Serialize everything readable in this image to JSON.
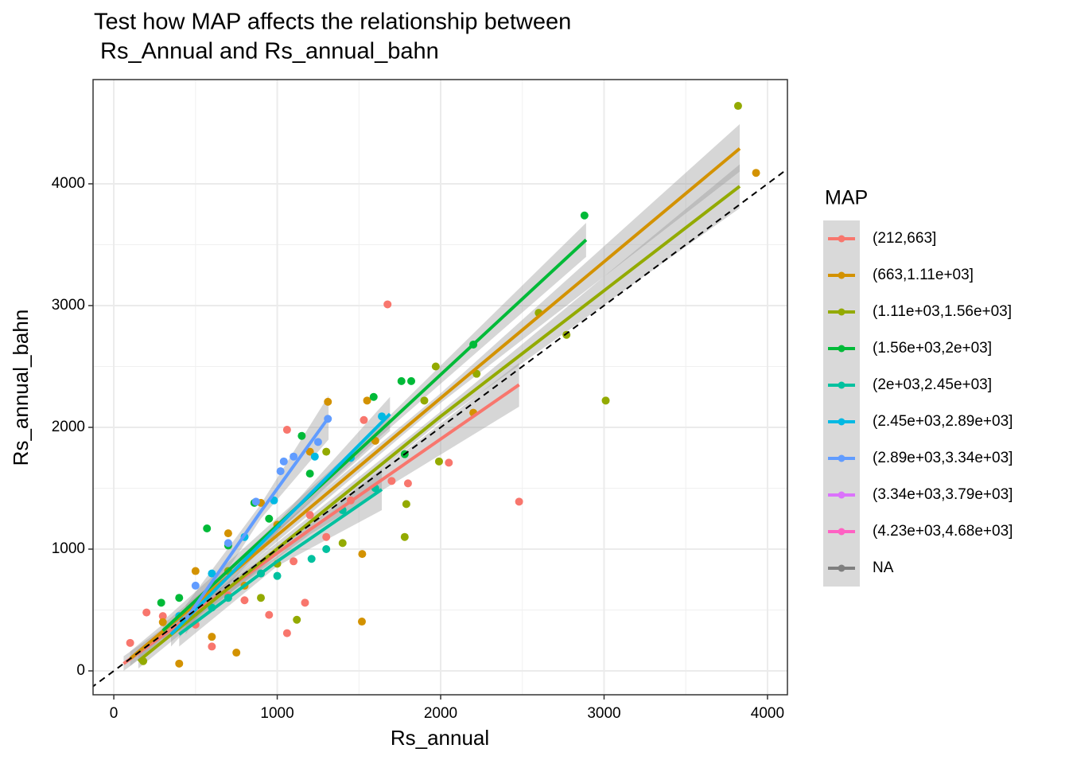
{
  "chart_data": {
    "type": "scatter",
    "title": [
      "Test how MAP affects the relationship between",
      " Rs_Annual and Rs_annual_bahn"
    ],
    "x_label": "Rs_annual",
    "y_label": "Rs_annual_bahn",
    "legend_title": "MAP",
    "xlim": [
      -127,
      4122
    ],
    "ylim": [
      -196,
      4856
    ],
    "xticks": [
      0,
      1000,
      2000,
      3000,
      4000
    ],
    "yticks": [
      0,
      1000,
      2000,
      3000,
      4000
    ],
    "grid": true,
    "minor_grid": true,
    "identity_line": true,
    "legend": "right",
    "series": [
      {
        "name": "(212,663]",
        "color": "#F8766D",
        "x": [
          1675,
          2480,
          2050,
          1530,
          1060,
          1170,
          1060,
          100,
          200,
          300,
          500,
          700,
          900,
          1100,
          1300,
          1450,
          1700,
          1800,
          950,
          800,
          1200,
          600
        ],
        "y": [
          3010,
          1390,
          1710,
          2060,
          1980,
          560,
          310,
          230,
          480,
          450,
          380,
          620,
          800,
          900,
          1100,
          1400,
          1560,
          1540,
          460,
          580,
          1280,
          200
        ],
        "fit": {
          "x": [
            60,
            1200,
            2480
          ],
          "y": [
            60,
            1160,
            2350
          ],
          "lower": [
            0,
            1120,
            2170
          ],
          "upper": [
            120,
            1200,
            2530
          ]
        }
      },
      {
        "name": "(663,1.11e+03]",
        "color": "#D39200",
        "x": [
          3930,
          1550,
          1310,
          1520,
          1518,
          400,
          700,
          900,
          1200,
          500,
          300,
          2200,
          1600,
          1000,
          800,
          600,
          750
        ],
        "y": [
          4090,
          2220,
          2210,
          960,
          405,
          60,
          1130,
          1380,
          1800,
          820,
          400,
          2120,
          1890,
          1200,
          700,
          280,
          150
        ],
        "fit": {
          "x": [
            100,
            2000,
            3830
          ],
          "y": [
            100,
            2240,
            4290
          ],
          "lower": [
            40,
            2200,
            4100
          ],
          "upper": [
            160,
            2280,
            4490
          ]
        }
      },
      {
        "name": "(1.11e+03,1.56e+03]",
        "color": "#93AA00",
        "x": [
          3820,
          3010,
          2770,
          2600,
          1970,
          1990,
          1780,
          1790,
          2220,
          1900,
          1120,
          1400,
          1000,
          700,
          180,
          500,
          1300,
          900
        ],
        "y": [
          4640,
          2220,
          2760,
          2940,
          2500,
          1720,
          1100,
          1370,
          2440,
          2220,
          420,
          1050,
          880,
          820,
          80,
          500,
          1800,
          600
        ],
        "fit": {
          "x": [
            150,
            2000,
            3830
          ],
          "y": [
            80,
            2090,
            3980
          ],
          "lower": [
            20,
            2050,
            3800
          ],
          "upper": [
            140,
            2130,
            4160
          ]
        }
      },
      {
        "name": "(1.56e+03,2e+03]",
        "color": "#00BA38",
        "x": [
          2880,
          2200,
          1760,
          1820,
          1590,
          1150,
          860,
          570,
          290,
          1780,
          1200,
          950,
          700,
          400
        ],
        "y": [
          3740,
          2680,
          2380,
          2380,
          2250,
          1930,
          1380,
          1170,
          560,
          1780,
          1620,
          1250,
          1030,
          600
        ],
        "fit": {
          "x": [
            300,
            1600,
            2890
          ],
          "y": [
            330,
            1935,
            3540
          ],
          "lower": [
            250,
            1890,
            3400
          ],
          "upper": [
            410,
            1980,
            3680
          ]
        }
      },
      {
        "name": "(2e+03,2.45e+03]",
        "color": "#00C19F",
        "x": [
          1210,
          1600,
          1400,
          900,
          600,
          1000,
          1300,
          700
        ],
        "y": [
          920,
          1500,
          1320,
          800,
          520,
          780,
          1000,
          600
        ],
        "fit": {
          "x": [
            400,
            1000,
            1640
          ],
          "y": [
            300,
            900,
            1490
          ],
          "lower": [
            200,
            860,
            1320
          ],
          "upper": [
            400,
            940,
            1660
          ]
        }
      },
      {
        "name": "(2.45e+03,2.89e+03]",
        "color": "#00B9E3",
        "x": [
          1640,
          1230,
          980,
          800,
          600,
          400,
          1450
        ],
        "y": [
          2090,
          1760,
          1400,
          1100,
          800,
          450,
          1750
        ],
        "fit": {
          "x": [
            350,
            1000,
            1690
          ],
          "y": [
            300,
            1180,
            2110
          ],
          "lower": [
            200,
            1140,
            1970
          ],
          "upper": [
            400,
            1220,
            2250
          ]
        }
      },
      {
        "name": "(2.89e+03,3.34e+03]",
        "color": "#619CFF",
        "x": [
          1310,
          1040,
          1100,
          1250,
          870,
          700,
          500,
          1020
        ],
        "y": [
          2070,
          1720,
          1760,
          1880,
          1390,
          1050,
          700,
          1640
        ],
        "fit": {
          "x": [
            440,
            900,
            1314
          ],
          "y": [
            420,
            1310,
            2080
          ],
          "lower": [
            300,
            1250,
            1900
          ],
          "upper": [
            540,
            1370,
            2260
          ]
        }
      },
      {
        "name": "(3.34e+03,3.79e+03]",
        "color": "#DB72FB",
        "x": [],
        "y": []
      },
      {
        "name": "(4.23e+03,4.68e+03]",
        "color": "#FF61C3",
        "x": [],
        "y": []
      },
      {
        "name": "NA",
        "color": "#7F7F7F",
        "x": [],
        "y": []
      }
    ]
  }
}
